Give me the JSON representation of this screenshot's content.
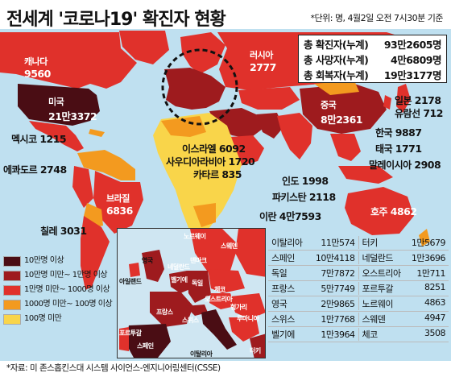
{
  "header": {
    "title": "전세계 '코로나19' 확진자 현황",
    "unit_note": "*단위: 명, 4월2일 오전 7시30분 기준"
  },
  "totals": [
    {
      "label": "총 확진자(누계)",
      "value": "93만2605명"
    },
    {
      "label": "총 사망자(누계)",
      "value": "4만6809명"
    },
    {
      "label": "총 회복자(누계)",
      "value": "19만3177명"
    }
  ],
  "world_labels": {
    "canada": {
      "name": "캐나다",
      "value": "9560"
    },
    "usa": {
      "name": "미국",
      "value": "21만3372"
    },
    "mexico": {
      "name": "멕시코",
      "value": "1215"
    },
    "ecuador": {
      "name": "에콰도르",
      "value": "2748"
    },
    "brazil": {
      "name": "브라질",
      "value": "6836"
    },
    "chile": {
      "name": "칠레",
      "value": "3031"
    },
    "russia": {
      "name": "러시아",
      "value": "2777"
    },
    "china": {
      "name": "중국",
      "value": "8만2361"
    },
    "japan": {
      "name": "일본",
      "value": "2178"
    },
    "cruise": {
      "name": "유람선",
      "value": "712"
    },
    "korea": {
      "name": "한국",
      "value": "9887"
    },
    "thailand": {
      "name": "태국",
      "value": "1771"
    },
    "malaysia": {
      "name": "말레이시아",
      "value": "2908"
    },
    "israel": {
      "name": "이스라엘",
      "value": "6092"
    },
    "saudi": {
      "name": "사우디아라비아",
      "value": "1720"
    },
    "qatar": {
      "name": "카타르",
      "value": "835"
    },
    "india": {
      "name": "인도",
      "value": "1998"
    },
    "pakistan": {
      "name": "파키스탄",
      "value": "2118"
    },
    "iran": {
      "name": "이란",
      "value": "4만7593"
    },
    "australia": {
      "name": "호주",
      "value": "4862"
    }
  },
  "europe_labels": {
    "norway": "노르웨이",
    "sweden": "스웨덴",
    "denmark": "덴마크",
    "uk": "영국",
    "netherlands": "네덜란드",
    "belgium": "벨기에",
    "ireland": "아일랜드",
    "germany": "독일",
    "austria": "오스트리아",
    "czech": "체코",
    "hungary": "헝가리",
    "romania": "루마니아",
    "france": "프랑스",
    "switzerland": "스위스",
    "portugal": "포르투갈",
    "spain": "스페인",
    "italy": "이탈리아",
    "turkey": "터키"
  },
  "legend": [
    {
      "label": "10만명 이상",
      "color": "#4a0d14"
    },
    {
      "label": "10만명 미만~ 1만명 이상",
      "color": "#9e1b1e"
    },
    {
      "label": "1만명 미만~ 1000명 이상",
      "color": "#e0312b"
    },
    {
      "label": "1000명 미만~ 100명 이상",
      "color": "#f39a1f"
    },
    {
      "label": "100명 미만",
      "color": "#f9d54a"
    }
  ],
  "europe_table": [
    {
      "left_name": "이탈리아",
      "left_value": "11만574",
      "right_name": "터키",
      "right_value": "1만5679"
    },
    {
      "left_name": "스페인",
      "left_value": "10만4118",
      "right_name": "네덜란드",
      "right_value": "1만3696"
    },
    {
      "left_name": "독일",
      "left_value": "7만7872",
      "right_name": "오스트리아",
      "right_value": "1만711"
    },
    {
      "left_name": "프랑스",
      "left_value": "5만7749",
      "right_name": "포르투갈",
      "right_value": "8251"
    },
    {
      "left_name": "영국",
      "left_value": "2만9865",
      "right_name": "노르웨이",
      "right_value": "4863"
    },
    {
      "left_name": "스위스",
      "left_value": "1만7768",
      "right_name": "스웨덴",
      "right_value": "4947"
    },
    {
      "left_name": "벨기에",
      "left_value": "1만3964",
      "right_name": "체코",
      "right_value": "3508"
    }
  ],
  "source": "*자료: 미 존스홉킨스대 시스템 사이언스-엔지니어링센터(CSSE)",
  "colors": {
    "ocean": "#bfe0f0",
    "level1": "#4a0d14",
    "level2": "#9e1b1e",
    "level3": "#e0312b",
    "level4": "#f39a1f",
    "level5": "#f9d54a",
    "nodata": "#d9d9d9"
  }
}
